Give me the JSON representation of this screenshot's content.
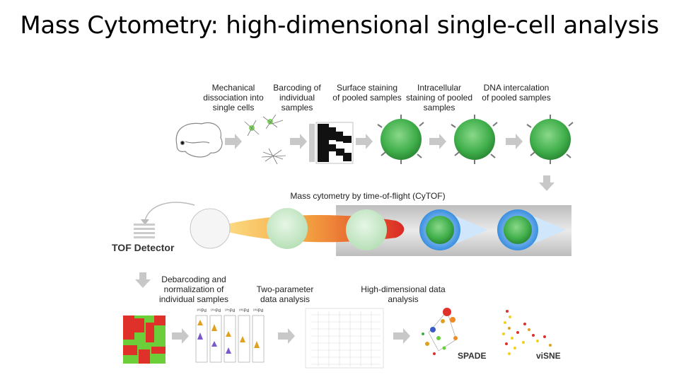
{
  "title": "Mass Cytometry: high-dimensional single-cell analysis",
  "steps": {
    "mechanical": "Mechanical dissociation into single cells",
    "barcoding": "Barcoding of individual samples",
    "surface": "Surface staining of pooled samples",
    "intracellular": "Intracellular staining of pooled samples",
    "dna": "DNA intercalation of pooled samples",
    "cytof": "Mass cytometry by time-of-flight (CyTOF)",
    "tof_detector": "TOF Detector",
    "debarcoding": "Debarcoding and normalization of individual samples",
    "two_param": "Two-parameter data analysis",
    "high_dim": "High-dimensional data analysis",
    "spade": "SPADE",
    "visne": "viSNE"
  },
  "histogram_labels": [
    "¹⁰²Pd",
    "¹⁰⁴Pd",
    "¹⁰⁵Pd",
    "¹⁰⁶Pd",
    "¹⁰⁸Pd"
  ],
  "colors": {
    "cell_green": "#3fae4a",
    "arrow_gray": "#c8c8c8",
    "heat_red": "#e0302a",
    "heat_green": "#6ccf3a",
    "beam_orange": "#f08a24",
    "ion_blue": "#3a8fe0"
  }
}
